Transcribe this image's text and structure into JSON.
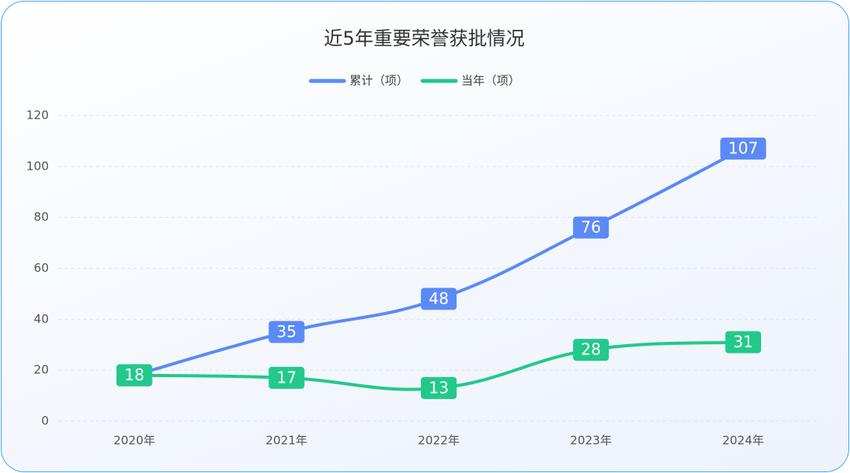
{
  "chart_data": {
    "type": "line",
    "title": "近5年重要荣誉获批情况",
    "categories": [
      "2020年",
      "2021年",
      "2022年",
      "2023年",
      "2024年"
    ],
    "series": [
      {
        "name": "累计（项）",
        "color": "#5b8af7",
        "values": [
          18,
          35,
          48,
          76,
          107
        ]
      },
      {
        "name": "当年（项）",
        "color": "#22c98a",
        "values": [
          18,
          17,
          13,
          28,
          31
        ]
      }
    ],
    "ylim": [
      0,
      120
    ],
    "yticks": [
      0,
      20,
      40,
      60,
      80,
      100,
      120
    ],
    "grid": true,
    "legend": "top"
  }
}
